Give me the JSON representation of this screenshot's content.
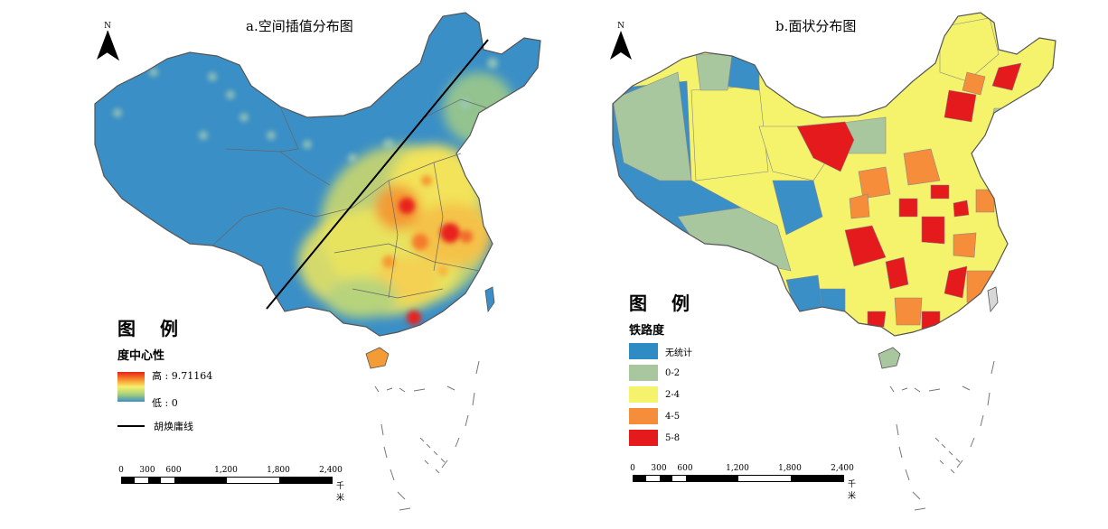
{
  "panel_a": {
    "title": "a.空间插值分布图",
    "north_label": "N",
    "legend": {
      "title": "图  例",
      "subtitle": "度中心性",
      "high_label": "高 : 9.71164",
      "low_label": "低 : 0",
      "line_label": "胡焕庸线"
    },
    "scale": {
      "ticks": [
        "0",
        "300",
        "600",
        "1,200",
        "1,800",
        "2,400"
      ],
      "unit": "千米"
    }
  },
  "panel_b": {
    "title": "b.面状分布图",
    "north_label": "N",
    "legend": {
      "title": "图  例",
      "subtitle": "铁路度",
      "classes": [
        {
          "label": "无统计",
          "color": "#2f8bc3"
        },
        {
          "label": "0-2",
          "color": "#a9c79f"
        },
        {
          "label": "2-4",
          "color": "#f5f36b"
        },
        {
          "label": "4-5",
          "color": "#f58d3a"
        },
        {
          "label": "5-8",
          "color": "#e41a1c"
        }
      ]
    },
    "scale": {
      "ticks": [
        "0",
        "300",
        "600",
        "1,200",
        "1,800",
        "2,400"
      ],
      "unit": "千米"
    }
  },
  "colors": {
    "base_blue": "#3a8fc6",
    "boundary": "#555555",
    "hu_line": "#000000"
  }
}
